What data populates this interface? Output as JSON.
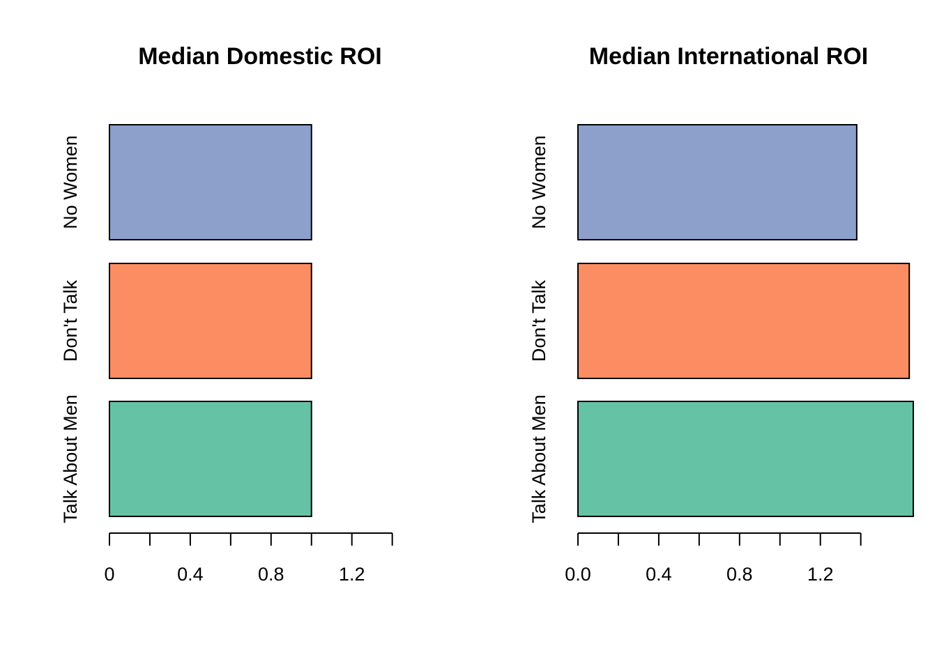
{
  "chart_data": [
    {
      "type": "bar",
      "orientation": "horizontal",
      "title": "Median Domestic ROI",
      "categories": [
        "Talk About Men",
        "Don't Talk",
        "No Women"
      ],
      "values": [
        1.0,
        1.0,
        1.0
      ],
      "colors": [
        "#66c2a5",
        "#fc8d62",
        "#8da0cb"
      ],
      "xlim": [
        0,
        1.66
      ],
      "xticks": [
        0,
        {
          "value": 0.4,
          "label": "0.4"
        },
        {
          "value": 0.8,
          "label": "0.8"
        },
        {
          "value": 1.2,
          "label": "1.2"
        }
      ],
      "xminorticks": [
        0.2,
        0.6,
        1.0,
        1.4
      ]
    },
    {
      "type": "bar",
      "orientation": "horizontal",
      "title": "Median International ROI",
      "categories": [
        "Talk About Men",
        "Don't Talk",
        "No Women"
      ],
      "values": [
        1.66,
        1.64,
        1.38
      ],
      "colors": [
        "#66c2a5",
        "#fc8d62",
        "#8da0cb"
      ],
      "xlim": [
        0,
        1.66
      ],
      "xticks": [
        {
          "value": 0,
          "label": "0.0"
        },
        {
          "value": 0.4,
          "label": "0.4"
        },
        {
          "value": 0.8,
          "label": "0.8"
        },
        {
          "value": 1.2,
          "label": "1.2"
        }
      ],
      "xminorticks": [
        0.2,
        0.6,
        1.0,
        1.4
      ]
    }
  ]
}
